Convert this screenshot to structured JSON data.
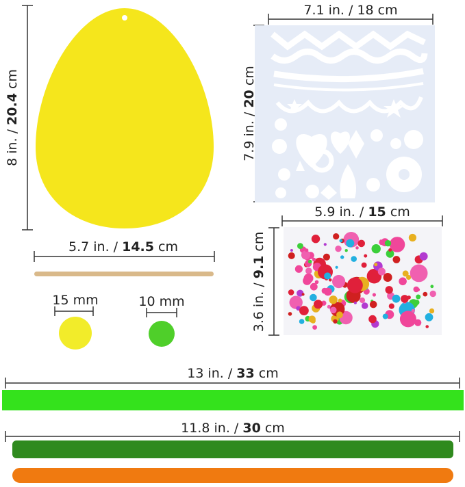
{
  "colors": {
    "egg": "#f5e61c",
    "stencil": "#e6ecf7",
    "stick": "#d9b98a",
    "ribbon": "#34e21c",
    "tinsel": "#2f8a1e",
    "chenille": "#f07a10",
    "yellow_pom": "#f2ec2a",
    "green_pom": "#4fcf2a",
    "gem_palette": [
      "#e0203a",
      "#22b0e0",
      "#b23ad0",
      "#f0469a",
      "#e8b020",
      "#3ccf3a",
      "#f060b0",
      "#d02020"
    ]
  },
  "labels": {
    "egg_height": {
      "normal": "8 in. / ",
      "bold": "20.4",
      "unit": " cm"
    },
    "stencil_width": {
      "normal": "7.1 in. / 18 cm",
      "bold": "",
      "unit": ""
    },
    "stencil_height": {
      "normal": "7.9 in. / ",
      "bold": "20",
      "unit": " cm"
    },
    "gem_width": {
      "normal": "5.9 in. / ",
      "bold": "15",
      "unit": " cm"
    },
    "gem_height": {
      "normal": "3.6 in. / ",
      "bold": "9.1",
      "unit": " cm"
    },
    "stick_length": {
      "normal": "5.7 in. / ",
      "bold": "14.5",
      "unit": " cm"
    },
    "pom_large": "15 mm",
    "pom_small": "10 mm",
    "ribbon_length": {
      "normal": "13 in. / ",
      "bold": "33",
      "unit": " cm"
    },
    "pipe_length": {
      "normal": "11.8 in. / ",
      "bold": "30",
      "unit": " cm"
    }
  }
}
